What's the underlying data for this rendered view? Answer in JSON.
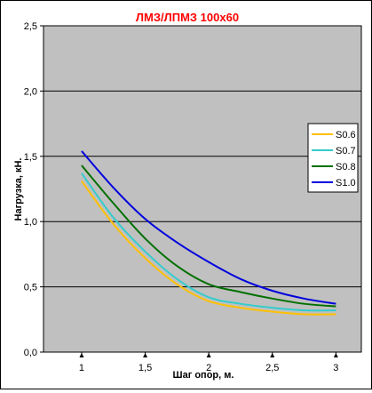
{
  "chart_data": {
    "type": "line",
    "title": "ЛМЗ/ЛПМЗ 100х60",
    "xlabel": "Шаг опор, м.",
    "ylabel": "Нагрузка, кН.",
    "xlim": [
      0.7,
      3.2
    ],
    "ylim": [
      0,
      2.5
    ],
    "x_ticks": [
      1,
      1.5,
      2,
      2.5,
      3
    ],
    "x_tick_labels": [
      "1",
      "1,5",
      "2",
      "2,5",
      "3"
    ],
    "y_ticks": [
      0,
      0.5,
      1,
      1.5,
      2,
      2.5
    ],
    "y_tick_labels": [
      "0,0",
      "0,5",
      "1,0",
      "1,5",
      "2,0",
      "2,5"
    ],
    "grid": "horizontal",
    "plot_background": "#c0c0c0",
    "legend_position": "right",
    "series": [
      {
        "name": "S0.6",
        "color": "#ffc000",
        "x": [
          1,
          1.25,
          1.5,
          1.75,
          2,
          2.25,
          2.5,
          2.75,
          3
        ],
        "y": [
          1.31,
          0.98,
          0.72,
          0.52,
          0.39,
          0.34,
          0.31,
          0.29,
          0.29
        ]
      },
      {
        "name": "S0.7",
        "color": "#33cccc",
        "x": [
          1,
          1.25,
          1.5,
          1.75,
          2,
          2.25,
          2.5,
          2.75,
          3
        ],
        "y": [
          1.37,
          1.03,
          0.77,
          0.56,
          0.42,
          0.37,
          0.34,
          0.32,
          0.32
        ]
      },
      {
        "name": "S0.8",
        "color": "#007000",
        "x": [
          1,
          1.25,
          1.5,
          1.75,
          2,
          2.25,
          2.5,
          2.75,
          3
        ],
        "y": [
          1.43,
          1.14,
          0.87,
          0.66,
          0.52,
          0.46,
          0.41,
          0.37,
          0.35
        ]
      },
      {
        "name": "S1.0",
        "color": "#0000dd",
        "x": [
          1,
          1.25,
          1.5,
          1.75,
          2,
          2.25,
          2.5,
          2.75,
          3
        ],
        "y": [
          1.54,
          1.26,
          1.02,
          0.84,
          0.69,
          0.56,
          0.47,
          0.41,
          0.37
        ]
      }
    ]
  }
}
